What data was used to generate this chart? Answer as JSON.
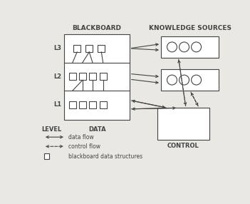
{
  "title_blackboard": "BLACKBOARD",
  "title_ks": "KNOWLEDGE SOURCES",
  "label_level": "LEVEL",
  "label_data": "DATA",
  "label_control": "CONTROL",
  "label_l3": "L3",
  "label_l2": "L2",
  "label_l1": "L1",
  "legend_data_flow": "data flow",
  "legend_control_flow": "control flow",
  "legend_bb_struct": "blackboard data structures",
  "bg_color": "#eae8e3",
  "line_color": "#444444",
  "figsize": [
    3.51,
    2.86
  ],
  "dpi": 100
}
